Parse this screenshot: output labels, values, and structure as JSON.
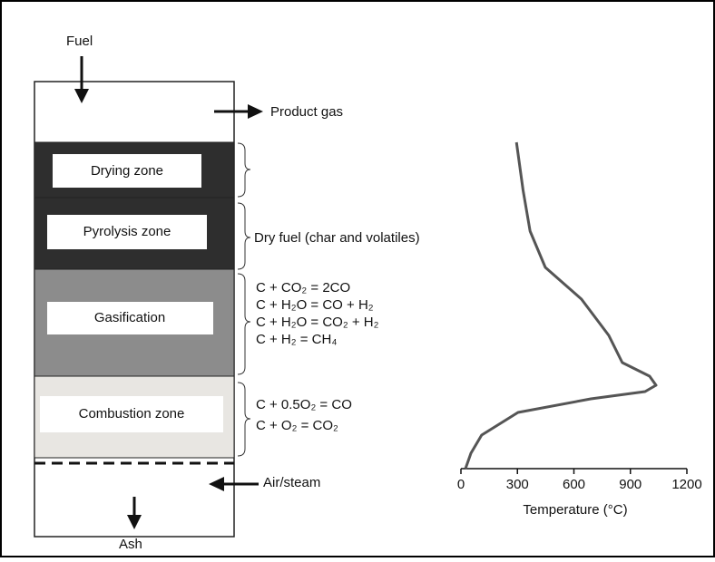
{
  "labels": {
    "fuel": "Fuel",
    "product_gas": "Product gas",
    "air_steam": "Air/steam",
    "ash": "Ash"
  },
  "zones": [
    {
      "label": "Drying zone"
    },
    {
      "label": "Pyrolysis zone"
    },
    {
      "label": "Gasification"
    },
    {
      "label": "Combustion zone"
    }
  ],
  "annotations": {
    "dry_fuel": "Dry fuel (char and volatiles)",
    "gasification_reactions": [
      "C + CO₂ = 2CO",
      "C + H₂O = CO + H₂",
      "C + H₂O = CO₂ + H₂",
      "C + H₂ = CH₄"
    ],
    "combustion_reactions": [
      "C + 0.5O₂ = CO",
      "C + O₂ = CO₂"
    ]
  },
  "temperature_profile": {
    "xlabel": "Temperature (°C)",
    "xlim": [
      0,
      1200
    ],
    "xticks": [
      0,
      300,
      600,
      900,
      1200
    ],
    "temperature": [
      295,
      330,
      367,
      448,
      640,
      785,
      857,
      1002,
      1036,
      978,
      690,
      303,
      110,
      53,
      24
    ]
  }
}
